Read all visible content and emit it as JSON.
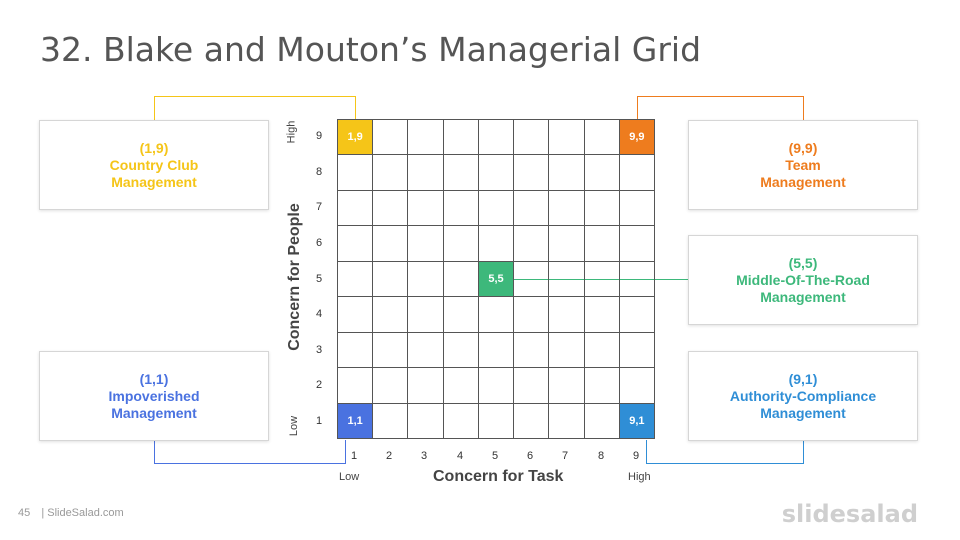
{
  "title": "32. Blake and Mouton’s Managerial Grid",
  "colors": {
    "country_club": "#F5C518",
    "team": "#EE7C1E",
    "middle": "#3DB87B",
    "impoverished": "#4A72E0",
    "authority": "#2F8ED6"
  },
  "boxes": {
    "country_club": {
      "coord": "(1,9)",
      "line1": "Country Club",
      "line2": "Management"
    },
    "team": {
      "coord": "(9,9)",
      "line1": "Team",
      "line2": "Management"
    },
    "middle": {
      "coord": "(5,5)",
      "line1": "Middle-Of-The-Road",
      "line2": "Management"
    },
    "impoverished": {
      "coord": "(1,1)",
      "line1": "Impoverished",
      "line2": "Management"
    },
    "authority": {
      "coord": "(9,1)",
      "line1": "Authority-Compliance",
      "line2": "Management"
    }
  },
  "cells": {
    "c19": "1,9",
    "c99": "9,9",
    "c55": "5,5",
    "c11": "1,1",
    "c91": "9,1"
  },
  "y_ticks": [
    "9",
    "8",
    "7",
    "6",
    "5",
    "4",
    "3",
    "2",
    "1"
  ],
  "x_ticks": [
    "1",
    "2",
    "3",
    "4",
    "5",
    "6",
    "7",
    "8",
    "9"
  ],
  "axis": {
    "y_title": "Concern for People",
    "x_title": "Concern for Task",
    "high": "High",
    "low": "Low"
  },
  "footer": {
    "page": "45",
    "site": "| SlideSalad.com"
  },
  "brand": "slidesalad"
}
